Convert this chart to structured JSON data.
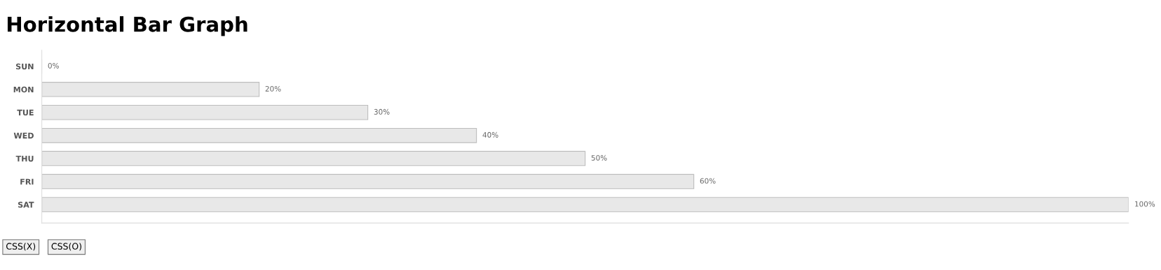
{
  "chart_data": {
    "type": "bar",
    "orientation": "horizontal",
    "title": "Horizontal Bar Graph",
    "categories": [
      "SUN",
      "MON",
      "TUE",
      "WED",
      "THU",
      "FRI",
      "SAT"
    ],
    "values": [
      0,
      20,
      30,
      40,
      50,
      60,
      100
    ],
    "value_labels": [
      "0%",
      "20%",
      "30%",
      "40%",
      "50%",
      "60%",
      "100%"
    ],
    "color": "#e8e8e8",
    "xlim": [
      0,
      100
    ],
    "grid": false,
    "annotations": [
      "CSS(X)",
      "CSS(O)"
    ]
  }
}
